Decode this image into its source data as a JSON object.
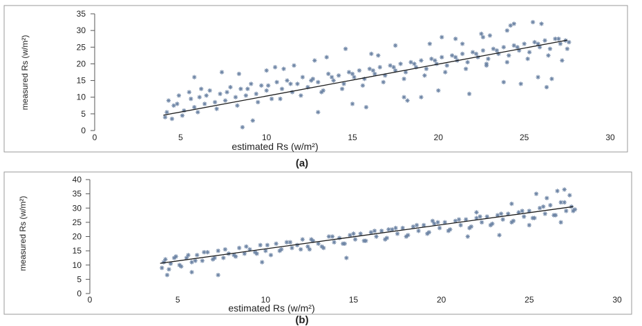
{
  "chart_data": [
    {
      "type": "scatter",
      "panel_label": "(a)",
      "xlabel": "estimated Rs (w/m²)",
      "ylabel": "measured Rs (w/m²)",
      "xlim": [
        0,
        30
      ],
      "ylim": [
        0,
        35
      ],
      "x_ticks": [
        0,
        5,
        10,
        15,
        20,
        25,
        30
      ],
      "y_ticks": [
        0,
        5,
        10,
        15,
        20,
        25,
        30,
        35
      ],
      "marker": "asterisk",
      "point_color": "#6f86a6",
      "trendline": {
        "x": [
          4,
          27.5
        ],
        "y": [
          4.6,
          27.1
        ]
      },
      "series": [
        {
          "x": [
            4.1,
            4.3,
            4.6,
            4.9,
            5.2,
            5.5,
            5.8,
            6.1,
            6.4,
            6.7,
            7.0,
            7.3,
            7.6,
            7.9,
            8.2,
            8.5,
            8.8,
            9.1,
            9.4,
            9.7,
            10.0,
            10.3,
            10.6,
            10.9,
            11.2,
            11.5,
            11.8,
            12.1,
            12.4,
            12.7,
            13.0,
            13.3,
            13.6,
            13.9,
            14.2,
            14.5,
            14.8,
            15.1,
            15.4,
            15.7,
            16.0,
            16.3,
            16.6,
            16.9,
            17.2,
            17.5,
            17.8,
            18.1,
            18.4,
            18.7,
            19.0,
            19.3,
            19.6,
            19.9,
            20.2,
            20.5,
            20.8,
            21.1,
            21.4,
            21.7,
            22.0,
            22.3,
            22.6,
            22.9,
            23.2,
            23.5,
            23.8,
            24.1,
            24.4,
            24.7,
            25.0,
            25.3,
            25.6,
            25.9,
            26.2,
            26.5,
            26.8,
            27.1,
            27.4,
            27.6,
            4.2,
            4.5,
            4.8,
            5.1,
            5.6,
            6.0,
            6.5,
            7.1,
            7.7,
            8.3,
            8.9,
            9.5,
            10.1,
            10.8,
            11.4,
            12.0,
            12.6,
            13.2,
            13.8,
            14.4,
            15.0,
            15.6,
            16.2,
            16.8,
            17.4,
            18.0,
            18.6,
            19.2,
            19.8,
            20.4,
            21.0,
            21.6,
            22.2,
            22.8,
            23.4,
            24.0,
            24.6,
            25.2,
            25.8,
            26.4,
            27.0,
            27.5,
            5.8,
            8.4,
            10.5,
            11.0,
            12.8,
            13.5,
            14.6,
            15.0,
            15.8,
            16.1,
            17.5,
            18.0,
            18.2,
            19.5,
            20.0,
            20.2,
            21.0,
            21.8,
            22.5,
            22.8,
            23.0,
            24.0,
            24.2,
            24.8,
            25.5,
            25.8,
            26.0,
            26.6,
            27.2,
            22.6,
            23.8,
            24.4,
            26.3,
            21.4,
            19.0,
            16.5,
            13.0,
            11.6,
            9.2,
            7.4,
            6.2,
            8.6,
            10.0
          ],
          "y": [
            4.0,
            9.0,
            7.5,
            10.5,
            6.0,
            11.5,
            7.0,
            10.0,
            8.0,
            12.0,
            8.5,
            11.0,
            9.0,
            13.0,
            10.0,
            12.5,
            10.5,
            14.0,
            11.0,
            13.5,
            12.0,
            9.5,
            14.5,
            12.5,
            15.0,
            11.5,
            14.0,
            16.0,
            13.0,
            15.5,
            14.5,
            12.0,
            17.0,
            15.0,
            16.5,
            14.0,
            17.5,
            16.0,
            18.0,
            15.5,
            18.5,
            17.0,
            19.0,
            16.5,
            19.5,
            18.0,
            20.0,
            17.5,
            20.5,
            19.0,
            21.0,
            18.5,
            21.5,
            20.0,
            22.0,
            19.5,
            22.5,
            21.0,
            23.0,
            20.5,
            23.5,
            22.0,
            24.0,
            21.5,
            24.5,
            23.0,
            25.0,
            22.5,
            25.5,
            24.0,
            26.0,
            23.5,
            26.5,
            25.0,
            27.0,
            24.5,
            27.5,
            26.0,
            27.0,
            26.5,
            5.5,
            3.5,
            8.0,
            4.5,
            9.5,
            5.5,
            10.5,
            6.5,
            11.5,
            7.5,
            12.5,
            8.5,
            13.5,
            9.5,
            14.0,
            10.5,
            15.0,
            11.5,
            16.0,
            12.5,
            17.0,
            13.5,
            18.0,
            14.5,
            19.0,
            15.5,
            20.0,
            16.5,
            21.0,
            17.5,
            22.0,
            18.5,
            23.0,
            19.5,
            24.0,
            20.5,
            25.0,
            21.5,
            26.0,
            22.5,
            27.5,
            24.5,
            16.0,
            17.0,
            19.0,
            18.5,
            21.0,
            22.0,
            24.5,
            8.0,
            7.0,
            23.0,
            25.5,
            10.0,
            9.0,
            26.0,
            12.0,
            28.0,
            27.5,
            11.0,
            29.0,
            20.0,
            28.5,
            30.0,
            31.5,
            14.0,
            32.5,
            16.0,
            32.0,
            15.5,
            21.0,
            28.0,
            14.5,
            32.0,
            13.0,
            26.0,
            10.0,
            22.5,
            5.5,
            19.5,
            3.0,
            17.5,
            12.5,
            1.0,
            18.0
          ]
        }
      ]
    },
    {
      "type": "scatter",
      "panel_label": "(b)",
      "xlabel": "estimated Rs (w/m²)",
      "ylabel": "measured Rs (w/m²)",
      "xlim": [
        0,
        30
      ],
      "ylim": [
        0,
        40
      ],
      "x_ticks": [
        0,
        5,
        10,
        15,
        20,
        25,
        30
      ],
      "y_ticks": [
        0,
        5,
        10,
        15,
        20,
        25,
        30,
        35,
        40
      ],
      "marker": "asterisk",
      "point_color": "#6f86a6",
      "trendline": {
        "x": [
          4,
          27.5
        ],
        "y": [
          10.6,
          30.5
        ]
      },
      "series": [
        {
          "x": [
            4.1,
            4.3,
            4.6,
            4.9,
            5.2,
            5.5,
            5.8,
            6.1,
            6.4,
            6.7,
            7.0,
            7.3,
            7.6,
            7.9,
            8.2,
            8.5,
            8.8,
            9.1,
            9.4,
            9.7,
            10.0,
            10.3,
            10.6,
            10.9,
            11.2,
            11.5,
            11.8,
            12.1,
            12.4,
            12.7,
            13.0,
            13.3,
            13.6,
            13.9,
            14.2,
            14.5,
            14.8,
            15.1,
            15.4,
            15.7,
            16.0,
            16.3,
            16.6,
            16.9,
            17.2,
            17.5,
            17.8,
            18.1,
            18.4,
            18.7,
            19.0,
            19.3,
            19.6,
            19.9,
            20.2,
            20.5,
            20.8,
            21.1,
            21.4,
            21.7,
            22.0,
            22.3,
            22.6,
            22.9,
            23.2,
            23.5,
            23.8,
            24.1,
            24.4,
            24.7,
            25.0,
            25.3,
            25.6,
            25.9,
            26.2,
            26.5,
            26.8,
            27.1,
            27.4,
            27.6,
            4.2,
            4.5,
            4.8,
            5.1,
            5.6,
            6.0,
            6.5,
            7.1,
            7.7,
            8.3,
            8.9,
            9.5,
            10.1,
            10.8,
            11.4,
            12.0,
            12.6,
            13.2,
            13.8,
            14.4,
            15.0,
            15.6,
            16.2,
            16.8,
            17.4,
            18.0,
            18.6,
            19.2,
            19.8,
            20.4,
            21.0,
            21.6,
            22.2,
            22.8,
            23.4,
            24.0,
            24.6,
            25.2,
            25.8,
            26.4,
            27.0,
            27.5,
            4.4,
            5.8,
            7.3,
            9.8,
            12.5,
            14.6,
            17.0,
            19.5,
            22.0,
            24.0,
            25.4,
            26.0,
            26.6,
            27.0,
            27.3,
            26.8,
            25.0,
            23.3,
            21.5
          ],
          "y": [
            9.0,
            12.0,
            10.5,
            13.0,
            9.5,
            12.5,
            11.0,
            13.5,
            11.5,
            14.5,
            12.0,
            15.0,
            12.5,
            14.0,
            13.5,
            16.0,
            14.0,
            15.5,
            14.5,
            17.0,
            15.0,
            13.5,
            17.5,
            15.5,
            18.0,
            16.0,
            17.0,
            19.0,
            16.5,
            18.5,
            17.5,
            16.0,
            20.0,
            18.0,
            19.5,
            17.5,
            20.5,
            19.0,
            21.0,
            18.5,
            21.5,
            20.0,
            22.0,
            19.5,
            22.5,
            21.0,
            23.0,
            20.5,
            23.5,
            22.0,
            24.0,
            21.5,
            24.5,
            23.0,
            25.0,
            22.5,
            25.5,
            24.0,
            26.0,
            23.5,
            26.5,
            25.0,
            27.0,
            24.5,
            27.5,
            26.0,
            28.0,
            25.5,
            28.5,
            27.0,
            29.0,
            26.5,
            30.0,
            28.0,
            31.0,
            27.5,
            32.0,
            29.0,
            30.5,
            29.5,
            11.0,
            8.5,
            12.5,
            10.0,
            13.5,
            11.5,
            14.5,
            12.5,
            15.5,
            13.0,
            16.5,
            14.0,
            17.0,
            15.0,
            18.0,
            15.5,
            19.0,
            16.5,
            20.0,
            17.5,
            21.0,
            18.5,
            22.0,
            19.0,
            23.0,
            20.0,
            24.0,
            21.0,
            25.0,
            22.0,
            26.0,
            23.0,
            27.0,
            24.0,
            28.0,
            25.0,
            29.0,
            26.5,
            30.5,
            27.5,
            32.0,
            29.0,
            6.5,
            7.5,
            6.5,
            11.0,
            15.5,
            12.5,
            22.5,
            25.5,
            28.5,
            31.5,
            35.0,
            33.5,
            36.0,
            36.5,
            34.5,
            25.0,
            24.0,
            20.5,
            20.0
          ]
        }
      ]
    }
  ]
}
